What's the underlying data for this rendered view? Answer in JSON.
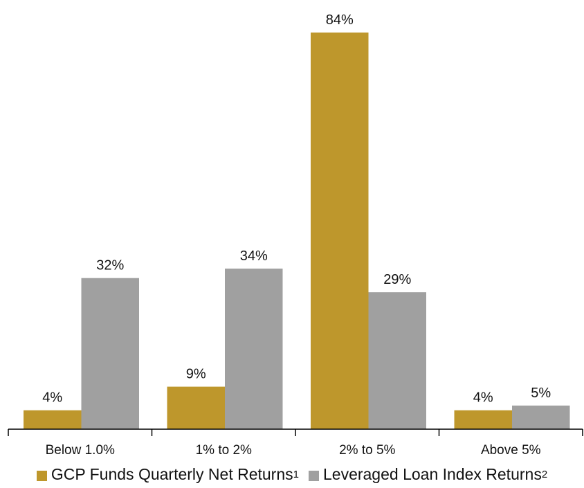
{
  "chart_data": {
    "type": "bar",
    "categories": [
      "Below 1.0%",
      "1% to 2%",
      "2% to 5%",
      "Above 5%"
    ],
    "series": [
      {
        "name": "GCP Funds Quarterly Net Returns",
        "footnote": "1",
        "color": "#BE972C",
        "values": [
          4,
          9,
          84,
          4
        ],
        "labels": [
          "4%",
          "9%",
          "84%",
          "4%"
        ]
      },
      {
        "name": "Leveraged Loan Index Returns",
        "footnote": "2",
        "color": "#A0A0A0",
        "values": [
          32,
          34,
          29,
          5
        ],
        "labels": [
          "32%",
          "34%",
          "29%",
          "5%"
        ]
      }
    ],
    "ylim": [
      0,
      84
    ],
    "grid": false,
    "legend_position": "bottom",
    "title": "",
    "xlabel": "",
    "ylabel": ""
  }
}
